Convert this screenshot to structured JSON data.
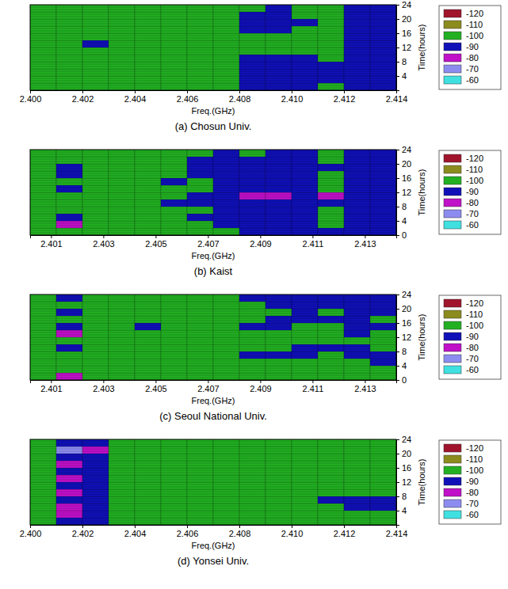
{
  "chart_data": [
    {
      "type": "heatmap",
      "title": "(a) Chosun Univ.",
      "x_label": "Freq.(GHz)",
      "y_label": "Time(hours)",
      "xlim": [
        2.4,
        2.414
      ],
      "ylim": [
        0,
        24
      ],
      "xticks": [
        {
          "value": 2.4,
          "label": "2.400"
        },
        2.402,
        2.404,
        2.406,
        2.408,
        {
          "value": 2.41,
          "label": "2.410"
        },
        2.412,
        2.414
      ],
      "yticks": [
        4,
        8,
        12,
        16,
        20,
        24
      ],
      "x_bins": [
        2.4,
        2.401,
        2.402,
        2.403,
        2.404,
        2.405,
        2.406,
        2.407,
        2.408,
        2.409,
        2.41,
        2.411,
        2.412,
        2.413,
        2.414
      ],
      "y_bins": [
        0,
        2,
        4,
        6,
        8,
        10,
        12,
        14,
        16,
        18,
        20,
        22,
        24
      ],
      "cells": [
        [
          -100,
          -100,
          -100,
          -100,
          -100,
          -100,
          -100,
          -100,
          -90,
          -90,
          -90,
          -100,
          -90,
          -90
        ],
        [
          -100,
          -100,
          -100,
          -100,
          -100,
          -100,
          -100,
          -100,
          -90,
          -90,
          -90,
          -90,
          -90,
          -90
        ],
        [
          -100,
          -100,
          -100,
          -100,
          -100,
          -100,
          -100,
          -100,
          -90,
          -90,
          -90,
          -90,
          -90,
          -90
        ],
        [
          -100,
          -100,
          -100,
          -100,
          -100,
          -100,
          -100,
          -100,
          -90,
          -90,
          -90,
          -90,
          -90,
          -90
        ],
        [
          -100,
          -100,
          -100,
          -100,
          -100,
          -100,
          -100,
          -100,
          -90,
          -90,
          -90,
          -100,
          -90,
          -90
        ],
        [
          -100,
          -100,
          -100,
          -100,
          -100,
          -100,
          -100,
          -100,
          -100,
          -100,
          -100,
          -100,
          -90,
          -90
        ],
        [
          -100,
          -100,
          -90,
          -100,
          -100,
          -100,
          -100,
          -100,
          -100,
          -100,
          -100,
          -100,
          -90,
          -90
        ],
        [
          -100,
          -100,
          -100,
          -100,
          -100,
          -100,
          -100,
          -100,
          -100,
          -100,
          -100,
          -100,
          -90,
          -90
        ],
        [
          -100,
          -100,
          -100,
          -100,
          -100,
          -100,
          -100,
          -100,
          -90,
          -90,
          -100,
          -100,
          -90,
          -90
        ],
        [
          -100,
          -100,
          -100,
          -100,
          -100,
          -100,
          -100,
          -100,
          -90,
          -90,
          -90,
          -100,
          -90,
          -90
        ],
        [
          -100,
          -100,
          -100,
          -100,
          -100,
          -100,
          -100,
          -100,
          -90,
          -90,
          -100,
          -100,
          -90,
          -90
        ],
        [
          -100,
          -100,
          -100,
          -100,
          -100,
          -100,
          -100,
          -100,
          -100,
          -90,
          -100,
          -100,
          -90,
          -90
        ]
      ],
      "colorbar": {
        "values": [
          -120,
          -110,
          -100,
          -90,
          -80,
          -70,
          -60
        ],
        "colors": [
          "#a0142c",
          "#8c8c1e",
          "#22b022",
          "#1010b8",
          "#c010c8",
          "#8c8cf0",
          "#40e0e0"
        ]
      }
    },
    {
      "type": "heatmap",
      "title": "(b) Kaist",
      "x_label": "Freq.(GHz)",
      "y_label": "Time(hours)",
      "xlim": [
        2.4002,
        2.4142
      ],
      "ylim": [
        0,
        24
      ],
      "xticks": [
        2.401,
        2.403,
        2.405,
        2.407,
        2.409,
        2.411,
        2.413
      ],
      "yticks": [
        0,
        4,
        8,
        12,
        16,
        20,
        24
      ],
      "x_bins": [
        2.4002,
        2.4012,
        2.4022,
        2.4032,
        2.4042,
        2.4052,
        2.4062,
        2.4072,
        2.4082,
        2.4092,
        2.4102,
        2.4112,
        2.4122,
        2.4132,
        2.4142
      ],
      "y_bins": [
        0,
        2,
        4,
        6,
        8,
        10,
        12,
        14,
        16,
        18,
        20,
        22,
        24
      ],
      "cells": [
        [
          -100,
          -100,
          -100,
          -100,
          -100,
          -100,
          -100,
          -100,
          -90,
          -90,
          -90,
          -90,
          -90,
          -90
        ],
        [
          -100,
          -80,
          -100,
          -100,
          -100,
          -100,
          -100,
          -90,
          -90,
          -90,
          -90,
          -100,
          -90,
          -90
        ],
        [
          -100,
          -90,
          -100,
          -100,
          -100,
          -100,
          -90,
          -90,
          -90,
          -90,
          -90,
          -100,
          -90,
          -90
        ],
        [
          -100,
          -100,
          -100,
          -100,
          -100,
          -100,
          -100,
          -90,
          -90,
          -90,
          -90,
          -100,
          -90,
          -90
        ],
        [
          -100,
          -100,
          -100,
          -100,
          -100,
          -90,
          -90,
          -90,
          -90,
          -90,
          -90,
          -90,
          -90,
          -90
        ],
        [
          -100,
          -100,
          -100,
          -100,
          -100,
          -100,
          -90,
          -90,
          -80,
          -80,
          -90,
          -80,
          -90,
          -90
        ],
        [
          -100,
          -90,
          -100,
          -100,
          -100,
          -100,
          -100,
          -90,
          -90,
          -90,
          -90,
          -100,
          -90,
          -90
        ],
        [
          -100,
          -100,
          -100,
          -100,
          -100,
          -90,
          -100,
          -90,
          -90,
          -90,
          -90,
          -100,
          -90,
          -90
        ],
        [
          -100,
          -90,
          -100,
          -100,
          -100,
          -100,
          -90,
          -90,
          -90,
          -90,
          -90,
          -100,
          -90,
          -90
        ],
        [
          -100,
          -90,
          -100,
          -100,
          -100,
          -100,
          -90,
          -90,
          -90,
          -90,
          -90,
          -90,
          -90,
          -90
        ],
        [
          -100,
          -100,
          -100,
          -100,
          -100,
          -100,
          -90,
          -90,
          -90,
          -90,
          -90,
          -100,
          -90,
          -90
        ],
        [
          -100,
          -100,
          -100,
          -100,
          -100,
          -100,
          -100,
          -90,
          -100,
          -90,
          -90,
          -100,
          -90,
          -90
        ]
      ],
      "colorbar": {
        "values": [
          -120,
          -110,
          -100,
          -90,
          -80,
          -70,
          -60
        ],
        "colors": [
          "#a0142c",
          "#8c8c1e",
          "#22b022",
          "#1010b8",
          "#c010c8",
          "#8c8cf0",
          "#40e0e0"
        ]
      }
    },
    {
      "type": "heatmap",
      "title": "(c) Seoul National Univ.",
      "x_label": "Freq.(GHz)",
      "y_label": "Time(hours)",
      "xlim": [
        2.4002,
        2.4142
      ],
      "ylim": [
        0,
        24
      ],
      "xticks": [
        2.401,
        2.403,
        2.405,
        2.407,
        2.409,
        2.411,
        2.413
      ],
      "yticks": [
        0,
        4,
        8,
        12,
        16,
        20,
        24
      ],
      "x_bins": [
        2.4002,
        2.4012,
        2.4022,
        2.4032,
        2.4042,
        2.4052,
        2.4062,
        2.4072,
        2.4082,
        2.4092,
        2.4102,
        2.4112,
        2.4122,
        2.4132,
        2.4142
      ],
      "y_bins": [
        0,
        2,
        4,
        6,
        8,
        10,
        12,
        14,
        16,
        18,
        20,
        22,
        24
      ],
      "cells": [
        [
          -100,
          -80,
          -100,
          -100,
          -100,
          -100,
          -100,
          -100,
          -100,
          -100,
          -100,
          -100,
          -100,
          -100
        ],
        [
          -100,
          -100,
          -100,
          -100,
          -100,
          -100,
          -100,
          -100,
          -100,
          -100,
          -100,
          -100,
          -100,
          -100
        ],
        [
          -100,
          -100,
          -100,
          -100,
          -100,
          -100,
          -100,
          -100,
          -100,
          -100,
          -100,
          -100,
          -100,
          -90
        ],
        [
          -100,
          -100,
          -100,
          -100,
          -100,
          -100,
          -100,
          -100,
          -90,
          -90,
          -90,
          -100,
          -90,
          -90
        ],
        [
          -100,
          -90,
          -100,
          -100,
          -100,
          -100,
          -100,
          -100,
          -100,
          -100,
          -90,
          -90,
          -90,
          -100
        ],
        [
          -100,
          -100,
          -100,
          -100,
          -100,
          -100,
          -100,
          -100,
          -100,
          -100,
          -100,
          -100,
          -100,
          -100
        ],
        [
          -100,
          -80,
          -100,
          -100,
          -100,
          -100,
          -100,
          -100,
          -100,
          -100,
          -100,
          -100,
          -90,
          -100
        ],
        [
          -100,
          -90,
          -100,
          -100,
          -90,
          -100,
          -100,
          -100,
          -90,
          -90,
          -100,
          -100,
          -90,
          -90
        ],
        [
          -100,
          -100,
          -100,
          -100,
          -100,
          -100,
          -100,
          -100,
          -100,
          -90,
          -90,
          -90,
          -90,
          -100
        ],
        [
          -100,
          -90,
          -100,
          -100,
          -100,
          -100,
          -100,
          -100,
          -100,
          -100,
          -90,
          -100,
          -90,
          -90
        ],
        [
          -100,
          -100,
          -100,
          -100,
          -100,
          -100,
          -100,
          -100,
          -100,
          -90,
          -90,
          -90,
          -90,
          -90
        ],
        [
          -100,
          -90,
          -100,
          -100,
          -100,
          -100,
          -100,
          -100,
          -90,
          -90,
          -90,
          -90,
          -90,
          -90
        ]
      ],
      "colorbar": {
        "values": [
          -120,
          -110,
          -100,
          -90,
          -80,
          -70,
          -60
        ],
        "colors": [
          "#a0142c",
          "#8c8c1e",
          "#22b022",
          "#1010b8",
          "#c010c8",
          "#8c8cf0",
          "#40e0e0"
        ]
      }
    },
    {
      "type": "heatmap",
      "title": "(d) Yonsei Univ.",
      "x_label": "Freq.(GHz)",
      "y_label": "Time(hours)",
      "xlim": [
        2.4,
        2.414
      ],
      "ylim": [
        0,
        24
      ],
      "xticks": [
        {
          "value": 2.4,
          "label": "2.400"
        },
        2.402,
        2.404,
        2.406,
        2.408,
        {
          "value": 2.41,
          "label": "2.410"
        },
        2.412,
        2.414
      ],
      "yticks": [
        4,
        8,
        12,
        16,
        20,
        24
      ],
      "x_bins": [
        2.4,
        2.401,
        2.402,
        2.403,
        2.404,
        2.405,
        2.406,
        2.407,
        2.408,
        2.409,
        2.41,
        2.411,
        2.412,
        2.413,
        2.414
      ],
      "y_bins": [
        0,
        2,
        4,
        6,
        8,
        10,
        12,
        14,
        16,
        18,
        20,
        22,
        24
      ],
      "cells": [
        [
          -100,
          -90,
          -90,
          -100,
          -100,
          -100,
          -100,
          -100,
          -100,
          -100,
          -100,
          -100,
          -100,
          -100
        ],
        [
          -100,
          -80,
          -90,
          -100,
          -100,
          -100,
          -100,
          -100,
          -100,
          -100,
          -100,
          -100,
          -100,
          -100
        ],
        [
          -100,
          -80,
          -90,
          -100,
          -100,
          -100,
          -100,
          -100,
          -100,
          -100,
          -100,
          -100,
          -90,
          -90
        ],
        [
          -100,
          -90,
          -90,
          -100,
          -100,
          -100,
          -100,
          -100,
          -100,
          -100,
          -100,
          -90,
          -90,
          -90
        ],
        [
          -100,
          -80,
          -90,
          -100,
          -100,
          -100,
          -100,
          -100,
          -100,
          -100,
          -100,
          -100,
          -100,
          -100
        ],
        [
          -100,
          -90,
          -90,
          -100,
          -100,
          -100,
          -100,
          -100,
          -100,
          -100,
          -100,
          -100,
          -100,
          -100
        ],
        [
          -100,
          -80,
          -90,
          -100,
          -100,
          -100,
          -100,
          -100,
          -100,
          -100,
          -100,
          -100,
          -100,
          -100
        ],
        [
          -100,
          -90,
          -90,
          -100,
          -100,
          -100,
          -100,
          -100,
          -100,
          -100,
          -100,
          -100,
          -100,
          -100
        ],
        [
          -100,
          -80,
          -90,
          -100,
          -100,
          -100,
          -100,
          -100,
          -100,
          -100,
          -100,
          -100,
          -100,
          -100
        ],
        [
          -100,
          -90,
          -90,
          -100,
          -100,
          -100,
          -100,
          -100,
          -100,
          -100,
          -100,
          -100,
          -100,
          -100
        ],
        [
          -100,
          -70,
          -80,
          -100,
          -100,
          -100,
          -100,
          -100,
          -100,
          -100,
          -100,
          -100,
          -100,
          -100
        ],
        [
          -100,
          -90,
          -90,
          -100,
          -100,
          -100,
          -100,
          -100,
          -100,
          -100,
          -100,
          -100,
          -100,
          -100
        ]
      ],
      "colorbar": {
        "values": [
          -120,
          -110,
          -100,
          -90,
          -80,
          -70,
          -60
        ],
        "colors": [
          "#a0142c",
          "#8c8c1e",
          "#22b022",
          "#1010b8",
          "#c010c8",
          "#8c8cf0",
          "#40e0e0"
        ]
      }
    }
  ]
}
